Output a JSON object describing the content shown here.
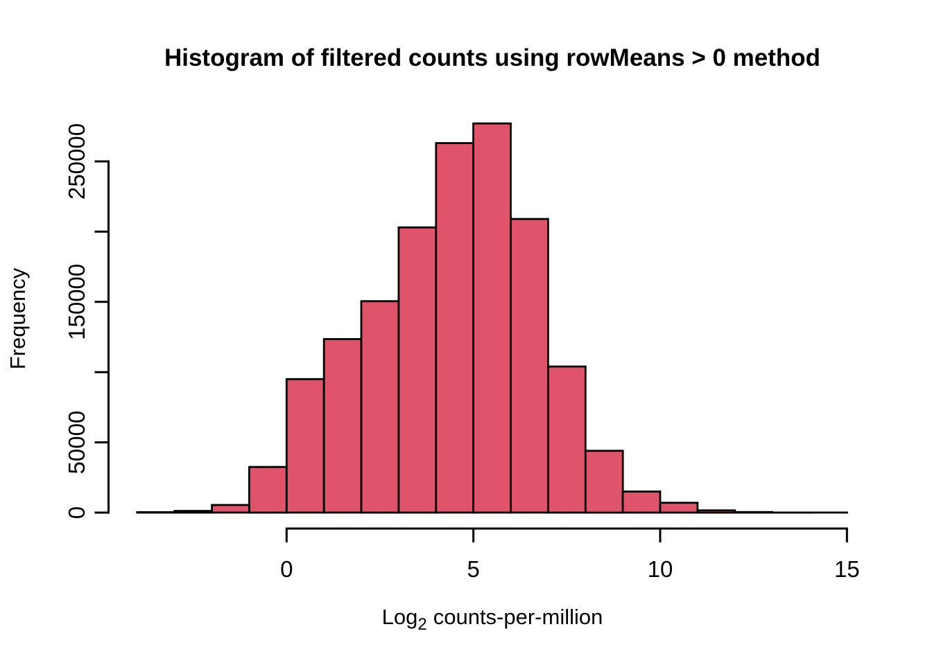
{
  "figure": {
    "title": "Histogram of filtered counts using rowMeans > 0 method",
    "xlabel": {
      "main": "Log",
      "sub": "2",
      "rest": "counts-per-million"
    },
    "ylabel": "Frequency"
  },
  "colors": {
    "bar_fill": "#DF536B",
    "bar_border": "#000000",
    "axis": "#000000",
    "background": "#FFFFFF",
    "text": "#000000"
  },
  "chart_data": {
    "type": "bar",
    "subtype": "histogram",
    "title": "Histogram of filtered counts using rowMeans > 0 method",
    "xlabel": "Log2 counts-per-million",
    "ylabel": "Frequency",
    "bin_breaks": [
      -4,
      -3,
      -2,
      -1,
      0,
      1,
      2,
      3,
      4,
      5,
      6,
      7,
      8,
      9,
      10,
      11,
      12,
      13,
      14,
      15
    ],
    "counts": [
      300,
      1200,
      5400,
      32500,
      95000,
      123500,
      150500,
      203000,
      263000,
      277000,
      209000,
      104000,
      44000,
      15000,
      7000,
      1600,
      400,
      60,
      30
    ],
    "xlim": [
      -4,
      15
    ],
    "ylim": [
      0,
      250000
    ],
    "x_ticks": [
      0,
      5,
      10,
      15
    ],
    "x_tick_labels": [
      "0",
      "5",
      "10",
      "15"
    ],
    "y_ticks": [
      0,
      50000,
      100000,
      150000,
      200000,
      250000
    ],
    "y_tick_labels": [
      "0",
      "50000",
      "",
      "150000",
      "",
      "250000"
    ],
    "grid": false,
    "legend": false,
    "bar_fill": "#DF536B",
    "bar_border": "#000000"
  }
}
